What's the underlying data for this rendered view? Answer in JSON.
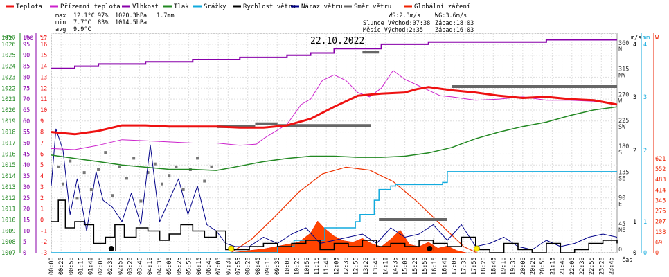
{
  "chart_data": {
    "type": "line",
    "date": "22.10.2022",
    "legend": [
      {
        "label": "Teplota",
        "color": "#ee1111"
      },
      {
        "label": "Přízemní teplota",
        "color": "#cc22cc"
      },
      {
        "label": "Vlhkost",
        "color": "#8800aa"
      },
      {
        "label": "Tlak",
        "color": "#228822"
      },
      {
        "label": "Srážky",
        "color": "#11aadd"
      },
      {
        "label": "Rychlost větru",
        "color": "#000000"
      },
      {
        "label": "Náraz větru",
        "color": "#000088"
      },
      {
        "label": "Směr větru",
        "color": "#666666"
      },
      {
        "label": "Globální záření",
        "color": "#ee2200"
      }
    ],
    "stats": [
      {
        "label": "max",
        "temp": "12.1°C",
        "hum": "97%",
        "press": "1020.3hPa",
        "rain": "1.7mm"
      },
      {
        "label": "min",
        "temp": "7.7°C",
        "hum": "83%",
        "press": "1014.5hPa",
        "rain": ""
      },
      {
        "label": "avg",
        "temp": "9.9°C",
        "hum": "",
        "press": "",
        "rain": ""
      }
    ],
    "info": {
      "ws": "WS:2.3m/s",
      "wg": "WG:3.6m/s",
      "sun": "Slunce Východ:07:38",
      "sunset": "Západ:18:03",
      "moon": "Měsíc  Východ:2:35",
      "moonset": "Západ:16:03"
    },
    "axes": {
      "hpa_unit": "hPa",
      "pct_unit": "%",
      "temp_unit": "°C",
      "ms_unit": "m/s",
      "mm_unit": "mm",
      "w_unit": "W",
      "x_unit": "čas",
      "hpa_ticks": [
        1007,
        1008,
        1009,
        1010,
        1011,
        1012,
        1013,
        1014,
        1015,
        1016,
        1017,
        1018,
        1019,
        1020,
        1021,
        1022,
        1023,
        1024,
        1025,
        1026,
        1027
      ],
      "pct_ticks": [
        0,
        5,
        10,
        15,
        20,
        25,
        30,
        35,
        40,
        45,
        50,
        55,
        60,
        65,
        70,
        75,
        80,
        85,
        90,
        95,
        100
      ],
      "temp_ticks": [
        -3,
        -2,
        -1,
        0,
        1,
        2,
        3,
        4,
        5,
        6,
        7,
        8,
        9,
        10,
        11,
        12,
        13,
        14,
        15,
        16,
        17
      ],
      "dir_ticks": [
        "0",
        "45 NE",
        "90 E",
        "135 SE",
        "180 S",
        "225 SW",
        "270 W",
        "315 NW",
        "360 N"
      ],
      "ms_ticks": [
        0,
        1,
        2,
        3,
        4
      ],
      "mm_ticks": [
        0,
        1,
        2,
        3,
        4
      ],
      "w_ticks": [
        0,
        69,
        138,
        207,
        276,
        345,
        414,
        483,
        552,
        621
      ],
      "time_ticks": [
        "00:00",
        "00:25",
        "00:50",
        "01:15",
        "01:40",
        "02:05",
        "02:30",
        "02:55",
        "03:20",
        "03:45",
        "04:10",
        "04:35",
        "05:00",
        "05:25",
        "05:50",
        "06:15",
        "06:40",
        "07:05",
        "07:30",
        "07:55",
        "08:20",
        "08:45",
        "09:10",
        "09:35",
        "10:00",
        "10:25",
        "10:50",
        "11:15",
        "11:40",
        "12:05",
        "12:30",
        "12:55",
        "13:20",
        "13:45",
        "14:10",
        "14:35",
        "15:00",
        "15:25",
        "15:50",
        "16:15",
        "16:40",
        "17:05",
        "17:30",
        "17:55",
        "18:20",
        "18:45",
        "19:10",
        "19:35",
        "20:00",
        "20:25",
        "20:50",
        "21:15",
        "21:40",
        "22:05",
        "22:30",
        "22:55",
        "23:20",
        "23:45"
      ]
    },
    "series": {
      "temp_hours": [
        0,
        1,
        2,
        3,
        4,
        5,
        6,
        7,
        8,
        9,
        10,
        11,
        12,
        12.5,
        13,
        14,
        15,
        15.5,
        16,
        17,
        18,
        19,
        20,
        21,
        22,
        23,
        24
      ],
      "temp_values": [
        8.0,
        7.8,
        8.1,
        8.6,
        8.6,
        8.5,
        8.5,
        8.5,
        8.4,
        8.4,
        8.6,
        9.2,
        10.3,
        10.8,
        11.3,
        11.5,
        11.6,
        11.9,
        12.1,
        11.8,
        11.6,
        11.3,
        11.1,
        11.2,
        11.0,
        10.9,
        10.5
      ],
      "ground_hours": [
        0,
        1,
        2,
        3,
        4,
        5,
        6,
        7,
        8,
        8.7,
        9,
        10,
        10.6,
        11,
        11.5,
        12,
        12.5,
        13,
        13.5,
        14,
        14.5,
        15,
        15.5,
        16,
        16.5,
        17,
        18,
        19,
        20,
        21,
        22,
        23,
        24
      ],
      "ground_values": [
        6.5,
        6.4,
        6.8,
        7.3,
        7.2,
        7.1,
        7.0,
        7.0,
        6.8,
        6.9,
        7.4,
        8.7,
        10.5,
        11.0,
        12.7,
        13.2,
        12.7,
        11.6,
        11.2,
        12.0,
        13.6,
        12.8,
        12.3,
        11.8,
        11.3,
        11.2,
        10.9,
        11.0,
        11.2,
        10.9,
        10.9,
        10.8,
        10.5
      ],
      "hum_hours": [
        0,
        1,
        2,
        3,
        4,
        5,
        6,
        7,
        8,
        9,
        10,
        11,
        12,
        13,
        14,
        15,
        16,
        17,
        18,
        19,
        20,
        21,
        22,
        23,
        24
      ],
      "hum_values": [
        84,
        85,
        86,
        86,
        87,
        87,
        88,
        88,
        89,
        89,
        90,
        91,
        93,
        93,
        95,
        95,
        96,
        96,
        96,
        96,
        96,
        97,
        97,
        97,
        97
      ],
      "press_hours": [
        0,
        1,
        2,
        3,
        4,
        5,
        6,
        7,
        8,
        9,
        10,
        11,
        12,
        13,
        14,
        15,
        16,
        17,
        18,
        19,
        20,
        21,
        22,
        23,
        24
      ],
      "press_values": [
        1015.9,
        1015.6,
        1015.3,
        1015.0,
        1014.8,
        1014.6,
        1014.6,
        1014.5,
        1014.9,
        1015.3,
        1015.6,
        1015.8,
        1015.8,
        1015.7,
        1015.7,
        1015.8,
        1016.1,
        1016.6,
        1017.4,
        1018.0,
        1018.5,
        1018.9,
        1019.5,
        1020.0,
        1020.3
      ],
      "rain_hours": [
        0,
        7.5,
        9.6,
        10.3,
        11.6,
        12.9,
        13.1,
        13.7,
        13.9,
        14.4,
        14.6,
        16.6,
        16.8,
        24
      ],
      "rain_values": [
        0,
        0,
        0.2,
        0.4,
        0.8,
        1.0,
        1.1,
        1.3,
        1.45,
        1.5,
        1.52,
        1.55,
        1.7,
        1.7
      ],
      "wind_hours": [
        0,
        0.3,
        0.6,
        1.0,
        1.4,
        1.8,
        2.3,
        2.7,
        3.1,
        3.6,
        4.1,
        4.6,
        5.0,
        5.5,
        6.0,
        6.5,
        7.0,
        7.4,
        7.8,
        8.4,
        9.0,
        9.6,
        10.2,
        10.8,
        11.4,
        12.0,
        12.6,
        13.2,
        13.8,
        14.4,
        15.0,
        15.6,
        16.2,
        16.8,
        17.4,
        18.0,
        18.6,
        19.2,
        19.8,
        20.4,
        21.0,
        21.6,
        22.2,
        22.8,
        23.4,
        24
      ],
      "wind_values": [
        1.0,
        1.3,
        0.8,
        1.0,
        0.9,
        0.3,
        0.5,
        0.9,
        0.5,
        0.8,
        0.7,
        0.4,
        0.6,
        0.9,
        0.7,
        0.5,
        0.7,
        0.1,
        0.1,
        0.2,
        0.3,
        0.2,
        0.3,
        0.4,
        0.1,
        0.3,
        0.2,
        0.4,
        0.2,
        0.3,
        0.2,
        0.4,
        0.3,
        0.2,
        0.5,
        0.1,
        0.0,
        0.3,
        0.1,
        0.0,
        0.3,
        0.0,
        0.1,
        0.3,
        0.4,
        0.3
      ],
      "gust_hours": [
        0,
        0.2,
        0.5,
        0.8,
        1.1,
        1.5,
        1.9,
        2.2,
        2.6,
        3.0,
        3.4,
        3.8,
        4.2,
        4.6,
        5.0,
        5.4,
        5.8,
        6.2,
        6.6,
        7.0,
        7.4,
        7.8,
        8.4,
        9.0,
        9.6,
        10.2,
        10.8,
        11.4,
        12.0,
        12.6,
        13.2,
        13.8,
        14.4,
        15.0,
        15.6,
        16.2,
        16.8,
        17.4,
        18.0,
        18.6,
        19.2,
        19.8,
        20.4,
        21.0,
        21.6,
        22.2,
        22.8,
        23.4,
        24
      ],
      "gust_values": [
        1.5,
        2.4,
        2.0,
        1.1,
        1.6,
        0.7,
        1.7,
        1.3,
        1.2,
        1.0,
        1.4,
        0.9,
        2.1,
        1.0,
        1.3,
        1.6,
        1.1,
        1.5,
        0.9,
        0.7,
        0.3,
        0.2,
        0.2,
        0.5,
        0.3,
        0.6,
        0.8,
        0.3,
        0.4,
        0.5,
        0.6,
        0.3,
        0.8,
        0.5,
        0.6,
        0.9,
        0.4,
        0.9,
        0.2,
        0.3,
        0.5,
        0.2,
        0.1,
        0.4,
        0.2,
        0.3,
        0.5,
        0.6,
        0.5
      ],
      "radiation_hours": [
        7.63,
        8.5,
        9.5,
        10.5,
        11.5,
        12.5,
        13.5,
        14.5,
        15.5,
        16.5,
        17.5,
        18.05
      ],
      "radiation_values": [
        0,
        90,
        240,
        400,
        520,
        565,
        545,
        470,
        340,
        190,
        40,
        0
      ],
      "radiation_measured_hours": [
        7.6,
        8.4,
        9.0,
        9.5,
        10.0,
        10.5,
        11.0,
        11.3,
        11.6,
        12.0,
        12.4,
        12.8,
        13.2,
        13.6,
        14.0,
        14.4,
        14.8,
        15.2,
        15.6,
        16.0,
        16.4,
        16.8,
        17.2,
        17.6
      ],
      "radiation_measured_values": [
        0,
        15,
        25,
        40,
        55,
        70,
        130,
        210,
        160,
        110,
        80,
        70,
        95,
        60,
        40,
        90,
        150,
        55,
        40,
        70,
        30,
        45,
        15,
        0
      ],
      "dir_segments": [
        {
          "start": 7.05,
          "end": 8.65,
          "deg": 220
        },
        {
          "start": 8.65,
          "end": 9.6,
          "deg": 225
        },
        {
          "start": 9.6,
          "end": 13.55,
          "deg": 222
        },
        {
          "start": 13.2,
          "end": 13.9,
          "deg": 350
        },
        {
          "start": 17.0,
          "end": 24.0,
          "deg": 290
        },
        {
          "start": 13.9,
          "end": 16.8,
          "deg": 58
        }
      ],
      "dir_points_hours": [
        0.3,
        0.5,
        0.8,
        1.1,
        1.4,
        1.7,
        2.0,
        2.3,
        2.6,
        2.9,
        3.2,
        3.5,
        3.8,
        4.1,
        4.4,
        4.7,
        5.0,
        5.3,
        5.6,
        5.9,
        6.2,
        6.5,
        6.8
      ],
      "dir_points_values": [
        150,
        120,
        160,
        95,
        140,
        110,
        145,
        175,
        100,
        150,
        130,
        165,
        90,
        140,
        155,
        120,
        135,
        150,
        110,
        145,
        165,
        125,
        150
      ]
    },
    "markers": [
      {
        "hour": 2.55,
        "type": "moonrise"
      },
      {
        "hour": 7.63,
        "type": "sunrise"
      },
      {
        "hour": 16.05,
        "type": "moonset"
      },
      {
        "hour": 18.05,
        "type": "sunset"
      }
    ]
  }
}
